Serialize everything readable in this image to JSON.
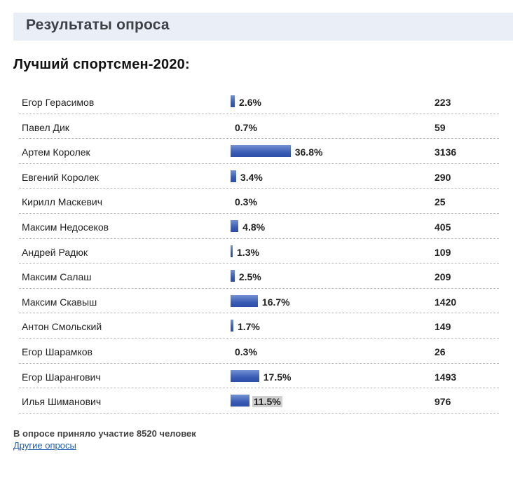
{
  "header": {
    "title": "Результаты опроса"
  },
  "poll": {
    "title": "Лучший спортсмен-2020:",
    "bar_color": "#3a5cb5",
    "options": [
      {
        "name": "Егор Герасимов",
        "percent_label": "2.6%",
        "percent": 2.6,
        "votes": "223",
        "highlight": false
      },
      {
        "name": "Павел Дик",
        "percent_label": "0.7%",
        "percent": 0.7,
        "votes": "59",
        "highlight": false
      },
      {
        "name": "Артем Королек",
        "percent_label": "36.8%",
        "percent": 36.8,
        "votes": "3136",
        "highlight": false
      },
      {
        "name": "Евгений Королек",
        "percent_label": "3.4%",
        "percent": 3.4,
        "votes": "290",
        "highlight": false
      },
      {
        "name": "Кирилл Маскевич",
        "percent_label": "0.3%",
        "percent": 0.3,
        "votes": "25",
        "highlight": false
      },
      {
        "name": "Максим Недосеков",
        "percent_label": "4.8%",
        "percent": 4.8,
        "votes": "405",
        "highlight": false
      },
      {
        "name": "Андрей Радюк",
        "percent_label": "1.3%",
        "percent": 1.3,
        "votes": "109",
        "highlight": false
      },
      {
        "name": "Максим Салаш",
        "percent_label": "2.5%",
        "percent": 2.5,
        "votes": "209",
        "highlight": false
      },
      {
        "name": "Максим Скавыш",
        "percent_label": "16.7%",
        "percent": 16.7,
        "votes": "1420",
        "highlight": false
      },
      {
        "name": "Антон Смольский",
        "percent_label": "1.7%",
        "percent": 1.7,
        "votes": "149",
        "highlight": false
      },
      {
        "name": "Егор Шарамков",
        "percent_label": "0.3%",
        "percent": 0.3,
        "votes": "26",
        "highlight": false
      },
      {
        "name": "Егор Шарангович",
        "percent_label": "17.5%",
        "percent": 17.5,
        "votes": "1493",
        "highlight": false
      },
      {
        "name": "Илья Шиманович",
        "percent_label": "11.5%",
        "percent": 11.5,
        "votes": "976",
        "highlight": true
      }
    ]
  },
  "footer": {
    "participants_text": "В опросе приняло участие 8520 человек",
    "other_polls_link": "Другие опросы"
  }
}
